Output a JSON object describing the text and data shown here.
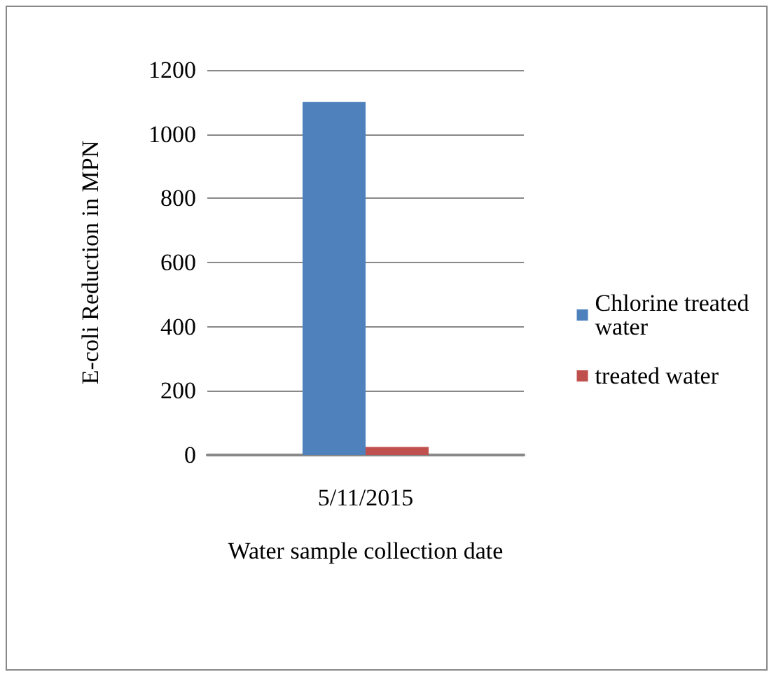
{
  "chart_data": {
    "type": "bar",
    "xlabel": "Water sample collection date",
    "ylabel": "E-coli Reduction in MPN",
    "categories": [
      "5/11/2015"
    ],
    "series": [
      {
        "name": "Chlorine treated water",
        "color": "#4f81bd",
        "values": [
          1100
        ]
      },
      {
        "name": "treated water",
        "color": "#c0504d",
        "values": [
          25
        ]
      }
    ],
    "ylim": [
      0,
      1200
    ],
    "yticks": [
      0,
      200,
      400,
      600,
      800,
      1000,
      1200
    ],
    "grid": "y",
    "legend": "right"
  }
}
